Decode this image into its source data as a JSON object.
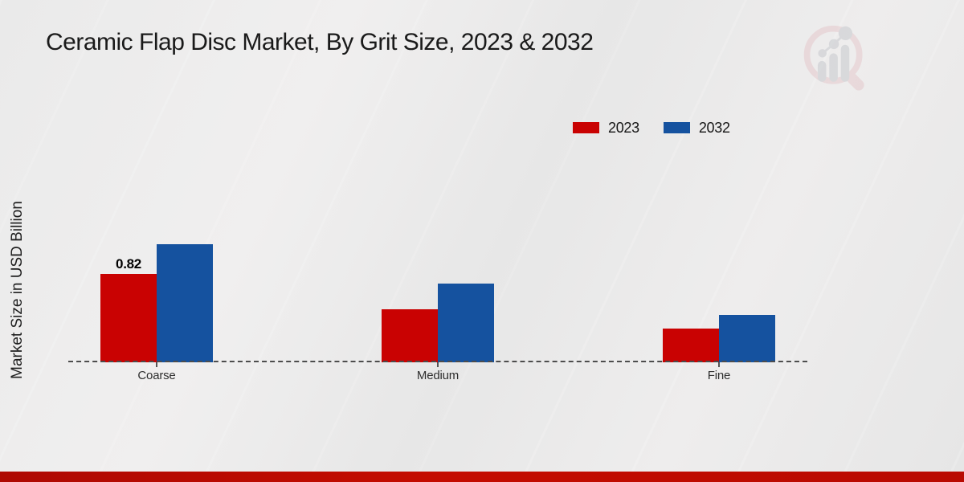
{
  "title": "Ceramic Flap Disc Market, By Grit Size, 2023 & 2032",
  "ylabel": "Market Size in USD Billion",
  "colors": {
    "series_2023": "#c90202",
    "series_2032": "#15529f",
    "footer_strip": "#c40c00",
    "baseline": "#4d4d4d",
    "background": "#eaeaea"
  },
  "legend": {
    "position": "top-right",
    "items": [
      {
        "label": "2023",
        "color": "#c90202"
      },
      {
        "label": "2032",
        "color": "#15529f"
      }
    ]
  },
  "watermark_icon": "magnifier-bar-chart-logo",
  "chart_data": {
    "type": "bar",
    "title": "Ceramic Flap Disc Market, By Grit Size, 2023 & 2032",
    "xlabel": "",
    "ylabel": "Market Size in USD Billion",
    "categories": [
      "Coarse",
      "Medium",
      "Fine"
    ],
    "series": [
      {
        "name": "2023",
        "color": "#c90202",
        "values": [
          0.82,
          0.49,
          0.31
        ]
      },
      {
        "name": "2032",
        "color": "#15529f",
        "values": [
          1.1,
          0.73,
          0.44
        ]
      }
    ],
    "annotations": [
      {
        "series": "2023",
        "category": "Coarse",
        "text": "0.82"
      }
    ],
    "ylim": [
      0,
      1.2
    ],
    "grid": false,
    "axis_style": "dashed-baseline-only",
    "legend_position": "top-right"
  }
}
